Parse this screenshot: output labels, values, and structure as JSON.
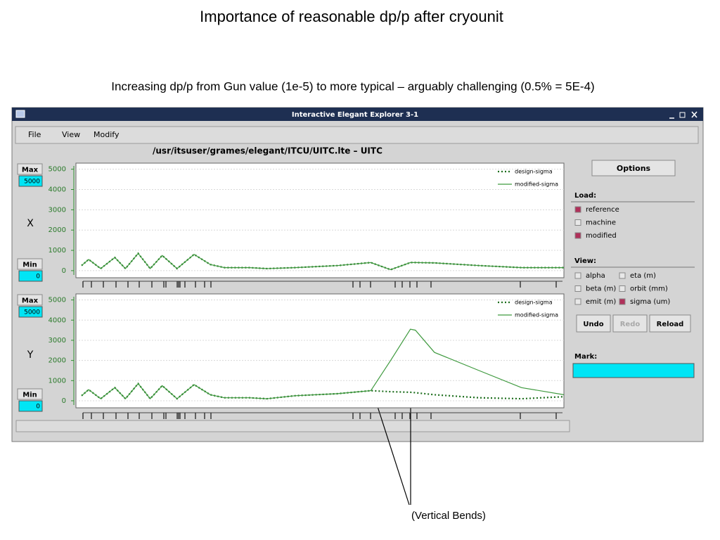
{
  "slide": {
    "title": "Importance of reasonable dp/p after cryounit",
    "subtitle": "Increasing dp/p from Gun value (1e-5) to more typical – arguably challenging (0.5% = 5E-4)",
    "annotation": "(Vertical Bends)"
  },
  "window": {
    "title": "Interactive Elegant Explorer 3-1",
    "menu": [
      "File",
      "View",
      "Modify"
    ],
    "path": "/usr/itsuser/grames/elegant/ITCU/UITC.lte – UITC",
    "max_button": "Max",
    "min_button": "Min",
    "options": {
      "button": "Options",
      "load_label": "Load:",
      "load": [
        {
          "label": "reference",
          "checked": true
        },
        {
          "label": "machine",
          "checked": false
        },
        {
          "label": "modified",
          "checked": true
        }
      ],
      "view_label": "View:",
      "view": [
        {
          "label": "alpha",
          "checked": false
        },
        {
          "label": "eta (m)",
          "checked": false
        },
        {
          "label": "beta (m)",
          "checked": false
        },
        {
          "label": "orbit (mm)",
          "checked": false
        },
        {
          "label": "emit (m)",
          "checked": false
        },
        {
          "label": "sigma (um)",
          "checked": true
        }
      ],
      "buttons": [
        {
          "label": "Undo",
          "enabled": true
        },
        {
          "label": "Redo",
          "enabled": false
        },
        {
          "label": "Reload",
          "enabled": true
        }
      ],
      "mark_label": "Mark:"
    }
  },
  "chart_data": [
    {
      "type": "line",
      "axis_label": "X",
      "max": 5000,
      "min": 0,
      "x": [
        8,
        18,
        35,
        55,
        70,
        88,
        105,
        122,
        143,
        167,
        190,
        210,
        245,
        270,
        310,
        370,
        417,
        445,
        473,
        480,
        507,
        570,
        630,
        690
      ],
      "xlim": [
        0,
        690
      ],
      "ylim": [
        -350,
        5300
      ],
      "yticks": [
        0,
        1000,
        2000,
        3000,
        4000,
        5000
      ],
      "grid": true,
      "series": [
        {
          "name": "design-sigma",
          "color": "#1d6e1d",
          "dash": "dotted",
          "values": [
            250,
            550,
            100,
            650,
            100,
            850,
            100,
            750,
            100,
            800,
            300,
            150,
            150,
            100,
            150,
            250,
            400,
            50,
            400,
            400,
            380,
            250,
            150,
            150
          ]
        },
        {
          "name": "modified-sigma",
          "color": "#3f9a3f",
          "dash": "solid",
          "values": [
            250,
            550,
            100,
            650,
            100,
            850,
            100,
            750,
            100,
            800,
            300,
            150,
            150,
            100,
            150,
            250,
            400,
            50,
            400,
            400,
            380,
            250,
            150,
            150
          ]
        }
      ]
    },
    {
      "type": "line",
      "axis_label": "Y",
      "max": 5000,
      "min": 0,
      "x": [
        8,
        18,
        35,
        55,
        70,
        88,
        105,
        122,
        143,
        167,
        190,
        210,
        245,
        270,
        310,
        370,
        417,
        445,
        473,
        480,
        507,
        570,
        630,
        690
      ],
      "xlim": [
        0,
        690
      ],
      "ylim": [
        -350,
        5300
      ],
      "yticks": [
        0,
        1000,
        2000,
        3000,
        4000,
        5000
      ],
      "grid": true,
      "series": [
        {
          "name": "design-sigma",
          "color": "#1d6e1d",
          "dash": "dotted",
          "values": [
            250,
            550,
            100,
            650,
            100,
            850,
            100,
            750,
            100,
            800,
            300,
            150,
            150,
            100,
            250,
            350,
            500,
            450,
            420,
            400,
            300,
            150,
            100,
            200
          ]
        },
        {
          "name": "modified-sigma",
          "color": "#3f9a3f",
          "dash": "solid",
          "values": [
            250,
            550,
            100,
            650,
            100,
            850,
            100,
            750,
            100,
            800,
            300,
            150,
            150,
            100,
            250,
            350,
            500,
            2000,
            3550,
            3500,
            2400,
            1500,
            650,
            300
          ]
        }
      ]
    }
  ]
}
